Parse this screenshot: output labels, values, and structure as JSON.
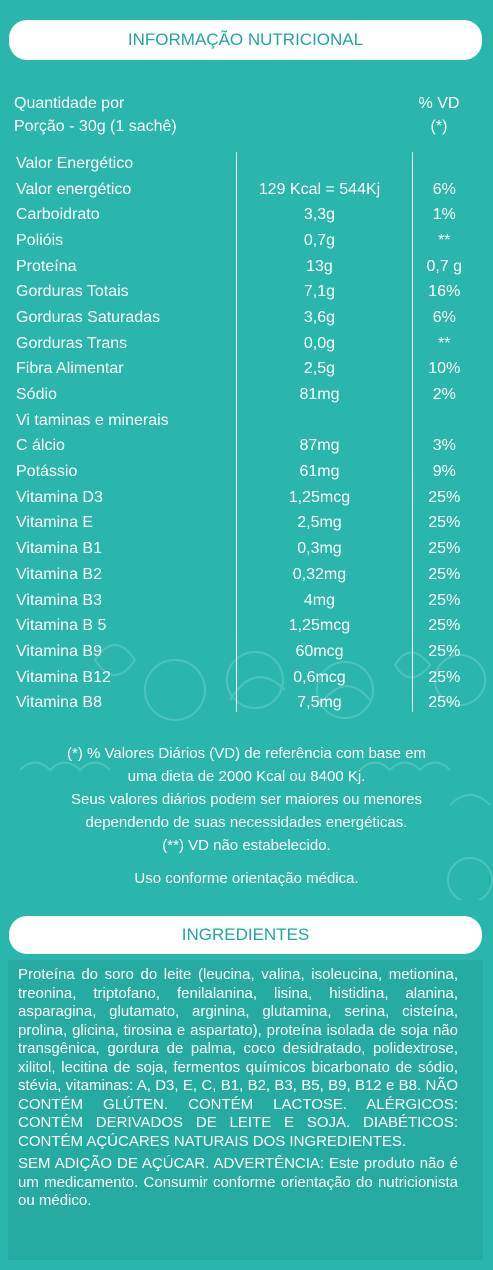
{
  "nutrition": {
    "header": "INFORMAÇÃO NUTRICIONAL",
    "qty_label": "Quantidade por",
    "vd_header": "% VD",
    "portion_label": "Porção - 30g (1 sachê)",
    "vd_note_mark": "(*)",
    "rows": [
      {
        "name": "Valor Energético",
        "amount": "",
        "vd": ""
      },
      {
        "name": "Valor energético",
        "amount": "129 Kcal = 544Kj",
        "vd": "6%"
      },
      {
        "name": "Carboidrato",
        "amount": "3,3g",
        "vd": "1%"
      },
      {
        "name": "Polióis",
        "amount": "0,7g",
        "vd": "**"
      },
      {
        "name": "Proteína",
        "amount": "13g",
        "vd": "0,7 g"
      },
      {
        "name": "Gorduras Totais",
        "amount": "7,1g",
        "vd": "16%"
      },
      {
        "name": "Gorduras Saturadas",
        "amount": "3,6g",
        "vd": "6%"
      },
      {
        "name": "Gorduras Trans",
        "amount": "0,0g",
        "vd": "**"
      },
      {
        "name": "Fibra Alimentar",
        "amount": "2,5g",
        "vd": "10%"
      },
      {
        "name": "Sódio",
        "amount": "81mg",
        "vd": "2%"
      },
      {
        "name": "Vi taminas e minerais",
        "amount": "",
        "vd": ""
      },
      {
        "name": "C álcio",
        "amount": "87mg",
        "vd": "3%"
      },
      {
        "name": "Potássio",
        "amount": "61mg",
        "vd": "9%"
      },
      {
        "name": "Vitamina D3",
        "amount": "1,25mcg",
        "vd": "25%"
      },
      {
        "name": "Vitamina E",
        "amount": "2,5mg",
        "vd": "25%"
      },
      {
        "name": "Vitamina B1",
        "amount": "0,3mg",
        "vd": "25%"
      },
      {
        "name": "Vitamina B2",
        "amount": "0,32mg",
        "vd": "25%"
      },
      {
        "name": "Vitamina B3",
        "amount": "4mg",
        "vd": "25%"
      },
      {
        "name": "Vitamina B 5",
        "amount": "1,25mcg",
        "vd": "25%"
      },
      {
        "name": "Vitamina B9",
        "amount": "60mcg",
        "vd": "25%"
      },
      {
        "name": "Vitamina B12",
        "amount": "0,6mcg",
        "vd": "25%"
      },
      {
        "name": "Vitamina B8",
        "amount": "7,5mg",
        "vd": "25%"
      }
    ],
    "notes": [
      "(*) % Valores Diários (VD) de referência com base em",
      "uma dieta de 2000 Kcal ou 8400 Kj.",
      "Seus valores diários podem ser maiores ou menores",
      "dependendo de suas necessidades energéticas.",
      "(**) VD não estabelecido."
    ],
    "usage": "Uso conforme orientação médica."
  },
  "ingredients": {
    "header": "INGREDIENTES",
    "paragraphs": [
      "Proteína do soro do leite (leucina, valina, isoleucina, metionina, treonina, triptofano, fenilalanina, lisina, histidina, alanina, asparagina, glutamato, arginina, glutamina, serina, cisteína, prolina, glicina, tirosina e aspartato), proteína isolada de soja não transgênica, gordura de palma, coco desidratado, polidextrose, xilitol, lecitina de soja, fermentos químicos bicarbonato de sódio, stévia, vitaminas: A, D3, E, C, B1, B2, B3, B5, B9, B12 e B8. NÃO CONTÉM GLÚTEN. CONTÉM LACTOSE. ALÉRGICOS: CONTÉM DERIVADOS DE LEITE E SOJA. DIABÉTICOS: CONTÉM AÇÚCARES NATURAIS DOS INGREDIENTES.",
      "SEM ADIÇÃO DE AÇÚCAR. ADVERTÊNCIA: Este produto não é um medicamento. Consumir conforme orientação do nutricionista ou médico."
    ]
  },
  "colors": {
    "background": "#2ab5ad",
    "accent_text": "#1fa69d"
  }
}
